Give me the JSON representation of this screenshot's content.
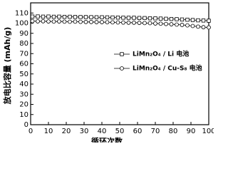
{
  "chart_data": {
    "type": "line",
    "x_label": "循环次数",
    "y_label": "放电比容量 (mAh/g)",
    "x": [
      1,
      4,
      7,
      10,
      13,
      16,
      19,
      22,
      25,
      28,
      31,
      34,
      37,
      40,
      43,
      46,
      49,
      52,
      55,
      58,
      61,
      64,
      67,
      70,
      73,
      76,
      79,
      82,
      85,
      88,
      91,
      94,
      97,
      100
    ],
    "series": [
      {
        "name": "LiMn₂O₄ / Li 电池",
        "color": "#000000",
        "marker": "square",
        "values": [
          106.5,
          106.6,
          106.4,
          106.5,
          106.3,
          106.4,
          106.2,
          106.3,
          106.1,
          106.0,
          106.0,
          105.9,
          105.8,
          105.8,
          105.7,
          105.6,
          105.5,
          105.4,
          105.3,
          105.3,
          105.1,
          105.0,
          104.8,
          104.7,
          104.5,
          104.3,
          104.1,
          103.9,
          103.6,
          103.4,
          103.1,
          102.8,
          102.6,
          102.4
        ]
      },
      {
        "name": "LiMn₂O₄ / Cu-S₈ 电池",
        "color": "#000000",
        "marker": "circle",
        "values": [
          102.0,
          101.8,
          101.9,
          101.7,
          101.6,
          101.7,
          101.5,
          101.4,
          101.5,
          101.3,
          101.2,
          101.2,
          101.0,
          101.0,
          100.9,
          100.8,
          100.7,
          100.6,
          100.5,
          100.5,
          100.3,
          100.1,
          100.0,
          99.7,
          99.5,
          99.2,
          98.9,
          98.6,
          98.3,
          97.8,
          97.2,
          96.6,
          96.0,
          95.8
        ]
      }
    ],
    "xlim": [
      0,
      100
    ],
    "xticks": [
      0,
      10,
      20,
      30,
      40,
      50,
      60,
      70,
      80,
      90,
      100
    ],
    "ylim": [
      0,
      120
    ],
    "yticks": [
      0,
      10,
      20,
      30,
      40,
      50,
      60,
      70,
      80,
      90,
      100,
      110
    ]
  }
}
